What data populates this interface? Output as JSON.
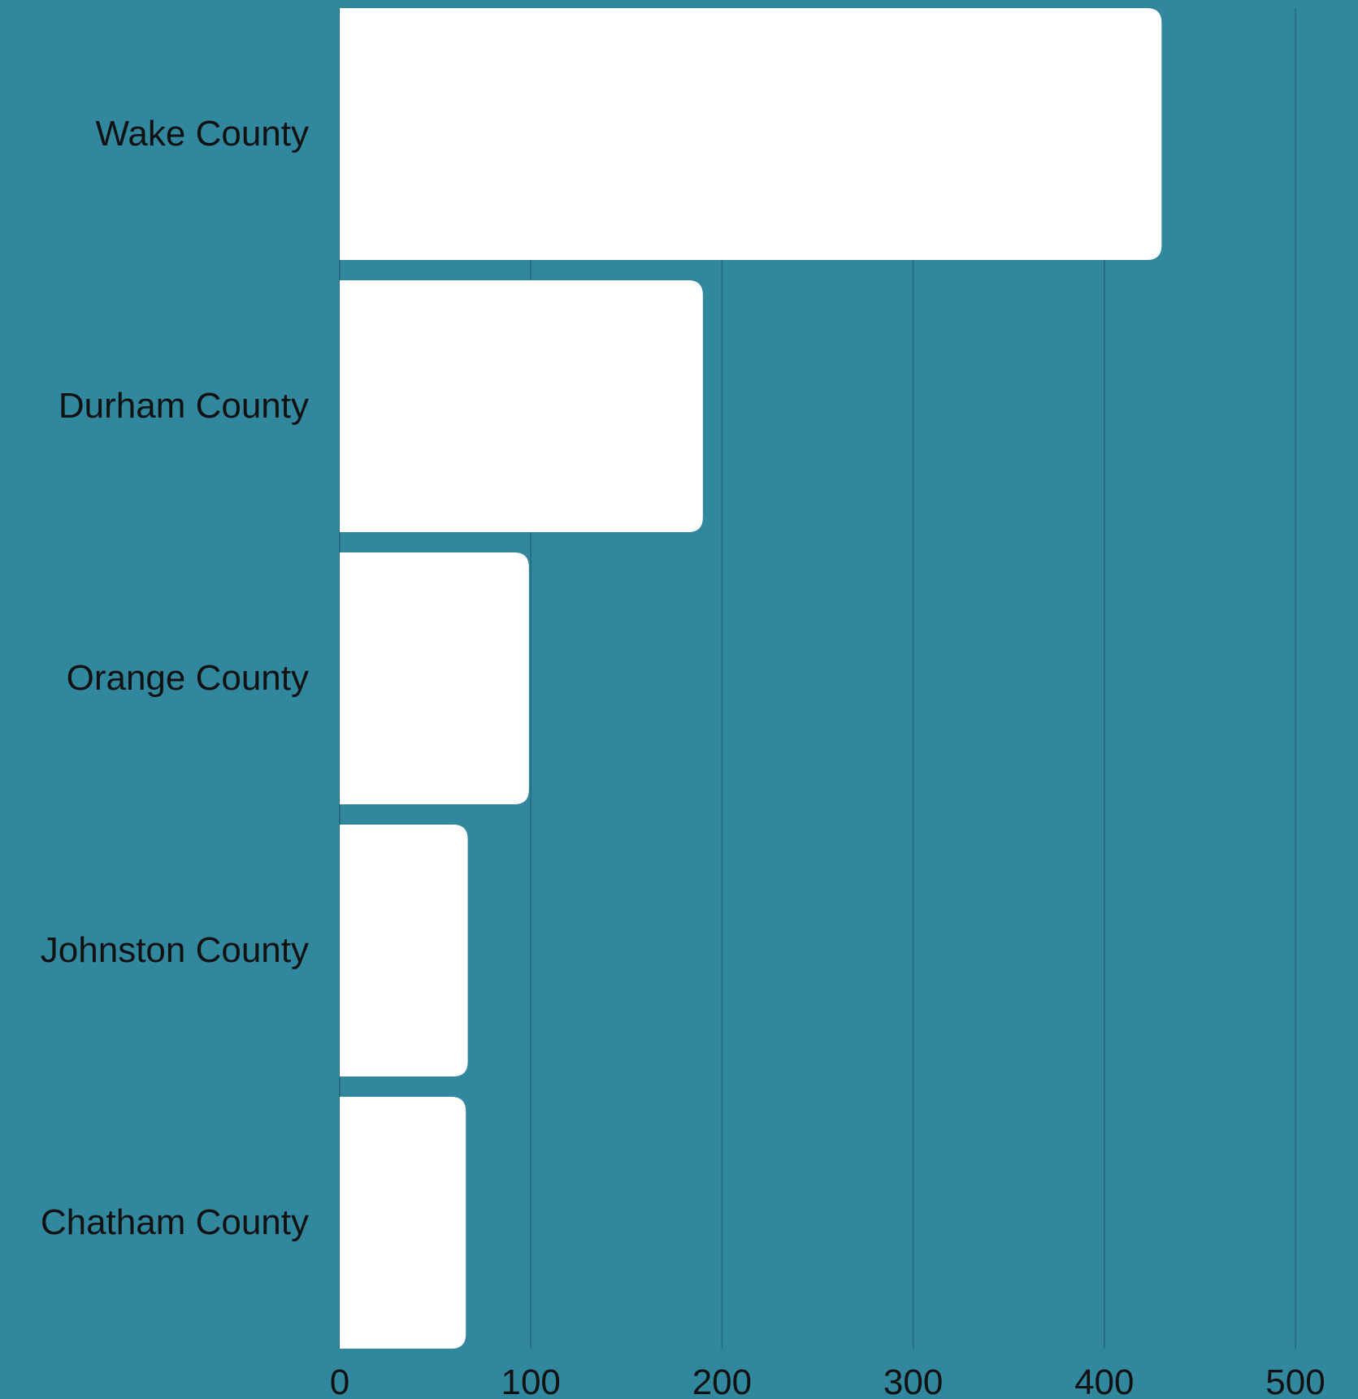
{
  "chart_data": {
    "type": "bar",
    "orientation": "horizontal",
    "categories": [
      "Wake County",
      "Durham County",
      "Orange County",
      "Johnston County",
      "Chatham County"
    ],
    "values": [
      430,
      190,
      99,
      67,
      66
    ],
    "xlim": [
      0,
      500
    ],
    "x_ticks": [
      "0",
      "100",
      "200",
      "300",
      "400",
      "500"
    ],
    "title": "",
    "xlabel": "",
    "ylabel": "",
    "grid": "vertical",
    "legend": "none",
    "colors": {
      "background": "#31879e",
      "bar": "#ffffff",
      "grid": "#246a7e",
      "text": "#111111"
    }
  }
}
